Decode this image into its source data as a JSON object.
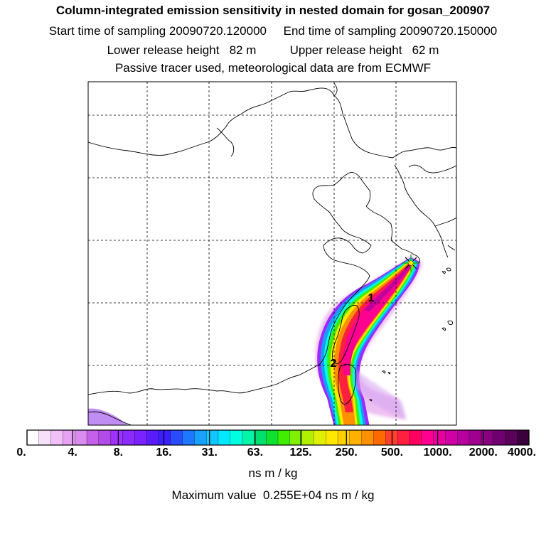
{
  "header": {
    "title": "Column-integrated emission sensitivity in nested domain for gosan_200907",
    "sampling": "Start time of sampling 20090720.120000     End time of sampling 20090720.150000",
    "release": "Lower release height   82 m          Upper release height   62 m",
    "tracer": "Passive tracer used, meteorological data are from ECMWF"
  },
  "chart_data": {
    "type": "heatmap",
    "title": "Column-integrated emission sensitivity in nested domain for gosan_200907",
    "unit": "ns m / kg",
    "maximum_text": "Maximum value  0.255E+04 ns m / kg",
    "max_value": 2550,
    "colorbar_ticks": [
      "0.",
      "4.",
      "8.",
      "16.",
      "31.",
      "63.",
      "125.",
      "250.",
      "500.",
      "1000.",
      "2000.",
      "4000."
    ],
    "colorbar_values": [
      0,
      4,
      8,
      16,
      31,
      63,
      125,
      250,
      500,
      1000,
      2000,
      4000
    ],
    "colors": [
      "#ffffff",
      "#f8e0fb",
      "#f0c0f7",
      "#e6a3f3",
      "#d98cf0",
      "#c660eb",
      "#b34be8",
      "#a030ff",
      "#8a2bff",
      "#7a22ff",
      "#5a1cff",
      "#3a20ff",
      "#2a4cff",
      "#1e78ff",
      "#1aa0ff",
      "#10c8ff",
      "#00e8ff",
      "#00ffe0",
      "#00f5a8",
      "#00e070",
      "#10e030",
      "#40ef00",
      "#80f000",
      "#b0f000",
      "#e0f000",
      "#ffe800",
      "#ffd000",
      "#ffb000",
      "#ff9000",
      "#ff6a00",
      "#ff4030",
      "#ff2040",
      "#ff0060",
      "#ff0090",
      "#e8009e",
      "#d000a6",
      "#b800a0",
      "#a00090",
      "#880080",
      "#700070",
      "#5a005a",
      "#3c003c"
    ],
    "markers": [
      {
        "label": "1",
        "lon": 126.5,
        "lat": 31.8
      },
      {
        "label": "2",
        "lon": 123.2,
        "lat": 26.8
      }
    ],
    "receptor": {
      "name": "Gosan",
      "lon": 126.2,
      "lat": 33.3
    }
  }
}
